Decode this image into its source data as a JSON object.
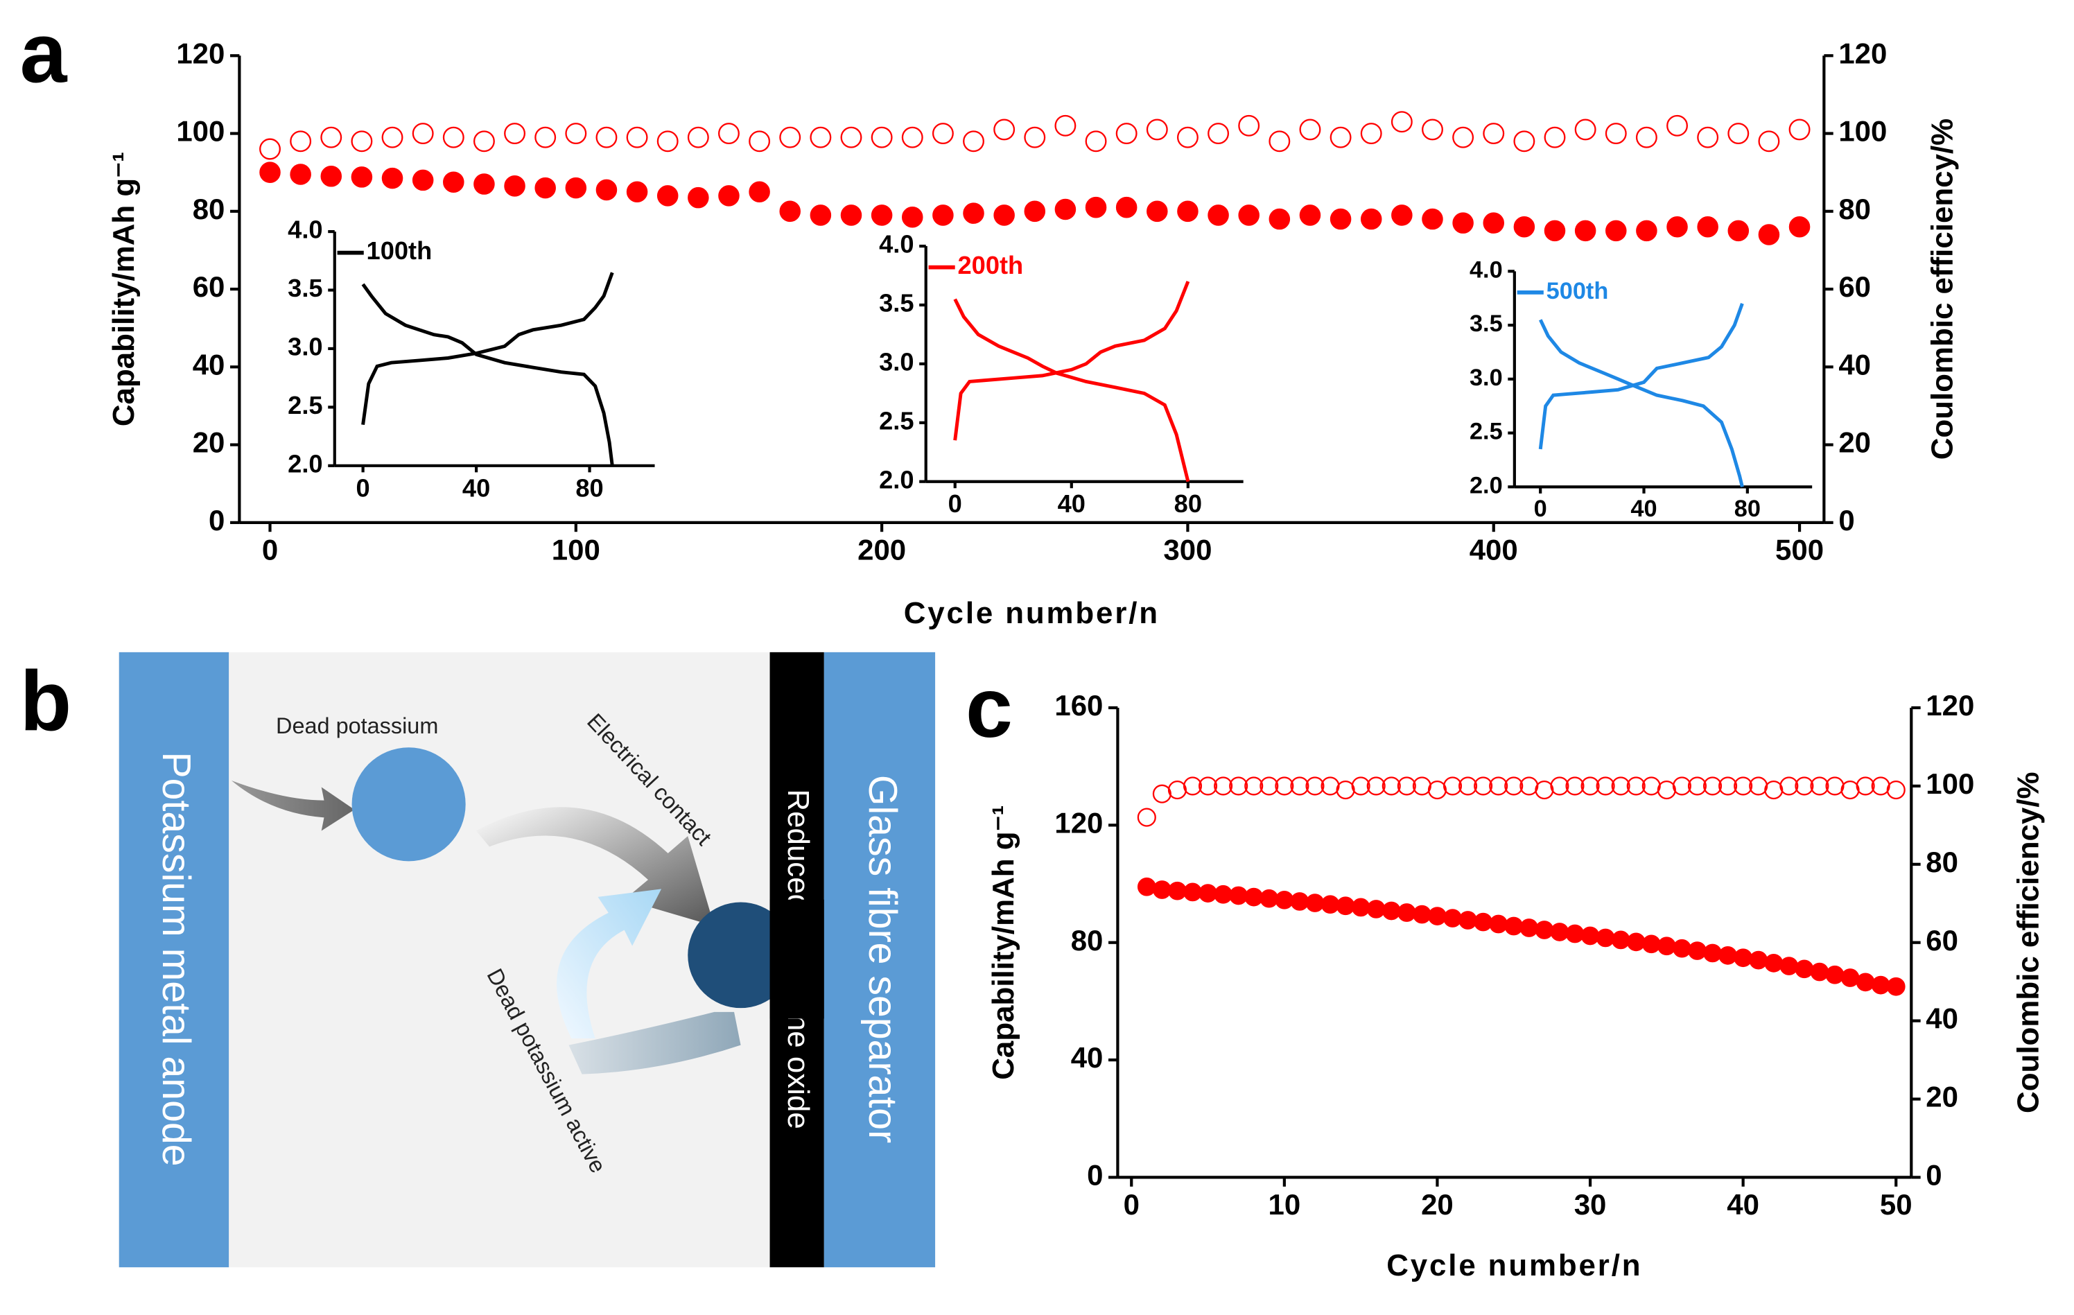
{
  "chart_data": [
    {
      "type": "scatter",
      "panel_label": "a",
      "xlabel": "Cycle number/n",
      "ylabel": "Capability/mAh g⁻¹",
      "y2label": "Coulombic efficiency/%",
      "xlim": [
        -10,
        508
      ],
      "xticks": [
        0,
        100,
        200,
        300,
        400,
        500
      ],
      "ylim": [
        0,
        120
      ],
      "yticks": [
        0,
        20,
        40,
        60,
        80,
        100,
        120
      ],
      "y2lim": [
        0,
        120
      ],
      "y2ticks": [
        0,
        20,
        40,
        60,
        80,
        100,
        120
      ],
      "x": [
        0,
        10,
        20,
        30,
        40,
        50,
        60,
        70,
        80,
        90,
        100,
        110,
        120,
        130,
        140,
        150,
        160,
        170,
        180,
        190,
        200,
        210,
        220,
        230,
        240,
        250,
        260,
        270,
        280,
        290,
        300,
        310,
        320,
        330,
        340,
        350,
        360,
        370,
        380,
        390,
        400,
        410,
        420,
        430,
        440,
        450,
        460,
        470,
        480,
        490,
        500
      ],
      "series": [
        {
          "color": "#ff0000",
          "filled": true,
          "values": [
            90,
            89.5,
            89,
            88.8,
            88.5,
            88,
            87.5,
            87,
            86.5,
            86,
            86,
            85.5,
            85,
            84,
            83.5,
            84,
            85,
            80,
            79,
            79,
            79,
            78.5,
            79,
            79.5,
            79,
            80,
            80.5,
            81,
            81,
            80,
            80,
            79,
            79,
            78,
            79,
            78,
            78,
            79,
            78,
            77,
            77,
            76,
            75,
            75,
            75,
            75,
            76,
            76,
            75,
            74,
            76
          ]
        },
        {
          "color": "#ff0000",
          "filled": false,
          "axis": "y2",
          "values": [
            96,
            98,
            99,
            98,
            99,
            100,
            99,
            98,
            100,
            99,
            100,
            99,
            99,
            98,
            99,
            100,
            98,
            99,
            99,
            99,
            99,
            99,
            100,
            98,
            101,
            99,
            102,
            98,
            100,
            101,
            99,
            100,
            102,
            98,
            101,
            99,
            100,
            103,
            101,
            99,
            100,
            98,
            99,
            101,
            100,
            99,
            102,
            99,
            100,
            98,
            101
          ]
        }
      ]
    },
    {
      "type": "line",
      "xlim": [
        -10,
        103
      ],
      "xticks": [
        0,
        40,
        80
      ],
      "ylim": [
        2,
        4
      ],
      "yticks": [
        {
          "value": 2,
          "label": "2.0"
        },
        {
          "value": 2.5,
          "label": "2.5"
        },
        {
          "value": 3,
          "label": "3.0"
        },
        {
          "value": 3.5,
          "label": "3.5"
        },
        {
          "value": 4,
          "label": "4.0"
        }
      ],
      "series": [
        {
          "name": "100th",
          "color": "#000000",
          "curves": [
            {
              "x": [
                0,
                3,
                8,
                15,
                25,
                30,
                35,
                40,
                50,
                60,
                70,
                78,
                82,
                85,
                87,
                88
              ],
              "values": [
                3.55,
                3.45,
                3.3,
                3.2,
                3.12,
                3.1,
                3.05,
                2.95,
                2.88,
                2.84,
                2.8,
                2.78,
                2.68,
                2.45,
                2.2,
                2.0
              ]
            },
            {
              "x": [
                0,
                2,
                5,
                10,
                20,
                30,
                40,
                50,
                55,
                60,
                70,
                78,
                82,
                85,
                88
              ],
              "values": [
                2.35,
                2.7,
                2.85,
                2.88,
                2.9,
                2.92,
                2.96,
                3.02,
                3.12,
                3.16,
                3.2,
                3.25,
                3.35,
                3.45,
                3.65
              ]
            }
          ]
        }
      ]
    },
    {
      "type": "line",
      "xlim": [
        -10,
        99
      ],
      "xticks": [
        0,
        40,
        80
      ],
      "ylim": [
        2,
        4
      ],
      "yticks": [
        {
          "value": 2,
          "label": "2.0"
        },
        {
          "value": 2.5,
          "label": "2.5"
        },
        {
          "value": 3,
          "label": "3.0"
        },
        {
          "value": 3.5,
          "label": "3.5"
        },
        {
          "value": 4,
          "label": "4.0"
        }
      ],
      "series": [
        {
          "name": "200th",
          "color": "#ff0000",
          "curves": [
            {
              "x": [
                0,
                3,
                8,
                15,
                25,
                30,
                35,
                45,
                55,
                65,
                72,
                76,
                79,
                80
              ],
              "values": [
                3.55,
                3.4,
                3.25,
                3.15,
                3.05,
                2.98,
                2.92,
                2.85,
                2.8,
                2.75,
                2.65,
                2.4,
                2.1,
                2.0
              ]
            },
            {
              "x": [
                0,
                2,
                5,
                10,
                20,
                30,
                40,
                45,
                50,
                55,
                65,
                72,
                76,
                80
              ],
              "values": [
                2.35,
                2.75,
                2.85,
                2.86,
                2.88,
                2.9,
                2.95,
                3.0,
                3.1,
                3.15,
                3.2,
                3.3,
                3.45,
                3.7
              ]
            }
          ]
        }
      ]
    },
    {
      "type": "line",
      "xlim": [
        -10,
        105
      ],
      "xticks": [
        0,
        40,
        80
      ],
      "ylim": [
        2,
        4
      ],
      "yticks": [
        {
          "value": 2,
          "label": "2.0"
        },
        {
          "value": 2.5,
          "label": "2.5"
        },
        {
          "value": 3,
          "label": "3.0"
        },
        {
          "value": 3.5,
          "label": "3.5"
        },
        {
          "value": 4,
          "label": "4.0"
        }
      ],
      "series": [
        {
          "name": "500th",
          "color": "#1e88e5",
          "curves": [
            {
              "x": [
                0,
                3,
                8,
                15,
                25,
                30,
                35,
                45,
                55,
                63,
                70,
                74,
                77,
                78
              ],
              "values": [
                3.55,
                3.4,
                3.25,
                3.15,
                3.05,
                3.0,
                2.95,
                2.85,
                2.8,
                2.75,
                2.6,
                2.35,
                2.1,
                2.0
              ]
            },
            {
              "x": [
                0,
                2,
                5,
                10,
                20,
                30,
                40,
                45,
                55,
                65,
                70,
                75,
                78
              ],
              "values": [
                2.35,
                2.75,
                2.85,
                2.86,
                2.88,
                2.9,
                2.97,
                3.1,
                3.15,
                3.2,
                3.3,
                3.5,
                3.7
              ]
            }
          ]
        }
      ]
    },
    {
      "type": "scatter",
      "panel_label": "c",
      "xlabel": "Cycle number/n",
      "ylabel": "Capability/mAh g⁻¹",
      "y2label": "Coulombic efficiency/%",
      "xlim": [
        -0.9,
        51
      ],
      "xticks": [
        0,
        10,
        20,
        30,
        40,
        50
      ],
      "ylim": [
        0,
        160
      ],
      "yticks": [
        0,
        40,
        80,
        120,
        160
      ],
      "y2lim": [
        0,
        120
      ],
      "y2ticks": [
        0,
        20,
        40,
        60,
        80,
        100,
        120
      ],
      "x": [
        1,
        2,
        3,
        4,
        5,
        6,
        7,
        8,
        9,
        10,
        11,
        12,
        13,
        14,
        15,
        16,
        17,
        18,
        19,
        20,
        21,
        22,
        23,
        24,
        25,
        26,
        27,
        28,
        29,
        30,
        31,
        32,
        33,
        34,
        35,
        36,
        37,
        38,
        39,
        40,
        41,
        42,
        43,
        44,
        45,
        46,
        47,
        48,
        49,
        50
      ],
      "series": [
        {
          "color": "#ff0000",
          "filled": true,
          "values": [
            99,
            98,
            97.6,
            97.2,
            96.8,
            96.4,
            96,
            95.5,
            95,
            94.5,
            94,
            93.5,
            93,
            92.5,
            92,
            91.4,
            90.8,
            90.2,
            89.6,
            89,
            88.3,
            87.6,
            87,
            86.3,
            85.6,
            85,
            84.3,
            83.6,
            83,
            82.3,
            81.6,
            80.9,
            80.2,
            79.5,
            78.8,
            78,
            77.2,
            76.4,
            75.6,
            74.8,
            74,
            73,
            72,
            71,
            70,
            69,
            68,
            66.5,
            65.5,
            65
          ]
        },
        {
          "color": "#ff0000",
          "filled": false,
          "axis": "y2",
          "values": [
            92,
            98,
            99,
            100,
            100,
            100,
            100,
            100,
            100,
            100,
            100,
            100,
            100,
            99,
            100,
            100,
            100,
            100,
            100,
            99,
            100,
            100,
            100,
            100,
            100,
            100,
            99,
            100,
            100,
            100,
            100,
            100,
            100,
            100,
            99,
            100,
            100,
            100,
            100,
            100,
            100,
            99,
            100,
            100,
            100,
            100,
            99,
            100,
            100,
            99
          ]
        }
      ]
    }
  ],
  "diagram": {
    "panel_label": "b",
    "anode": "Potassium metal anode",
    "interlayer": "Reduced graphene oxide",
    "separator": "Glass fibre separator",
    "dead": "Dead potassium",
    "contact": "Electrical contact",
    "active": "Dead potassium active"
  }
}
